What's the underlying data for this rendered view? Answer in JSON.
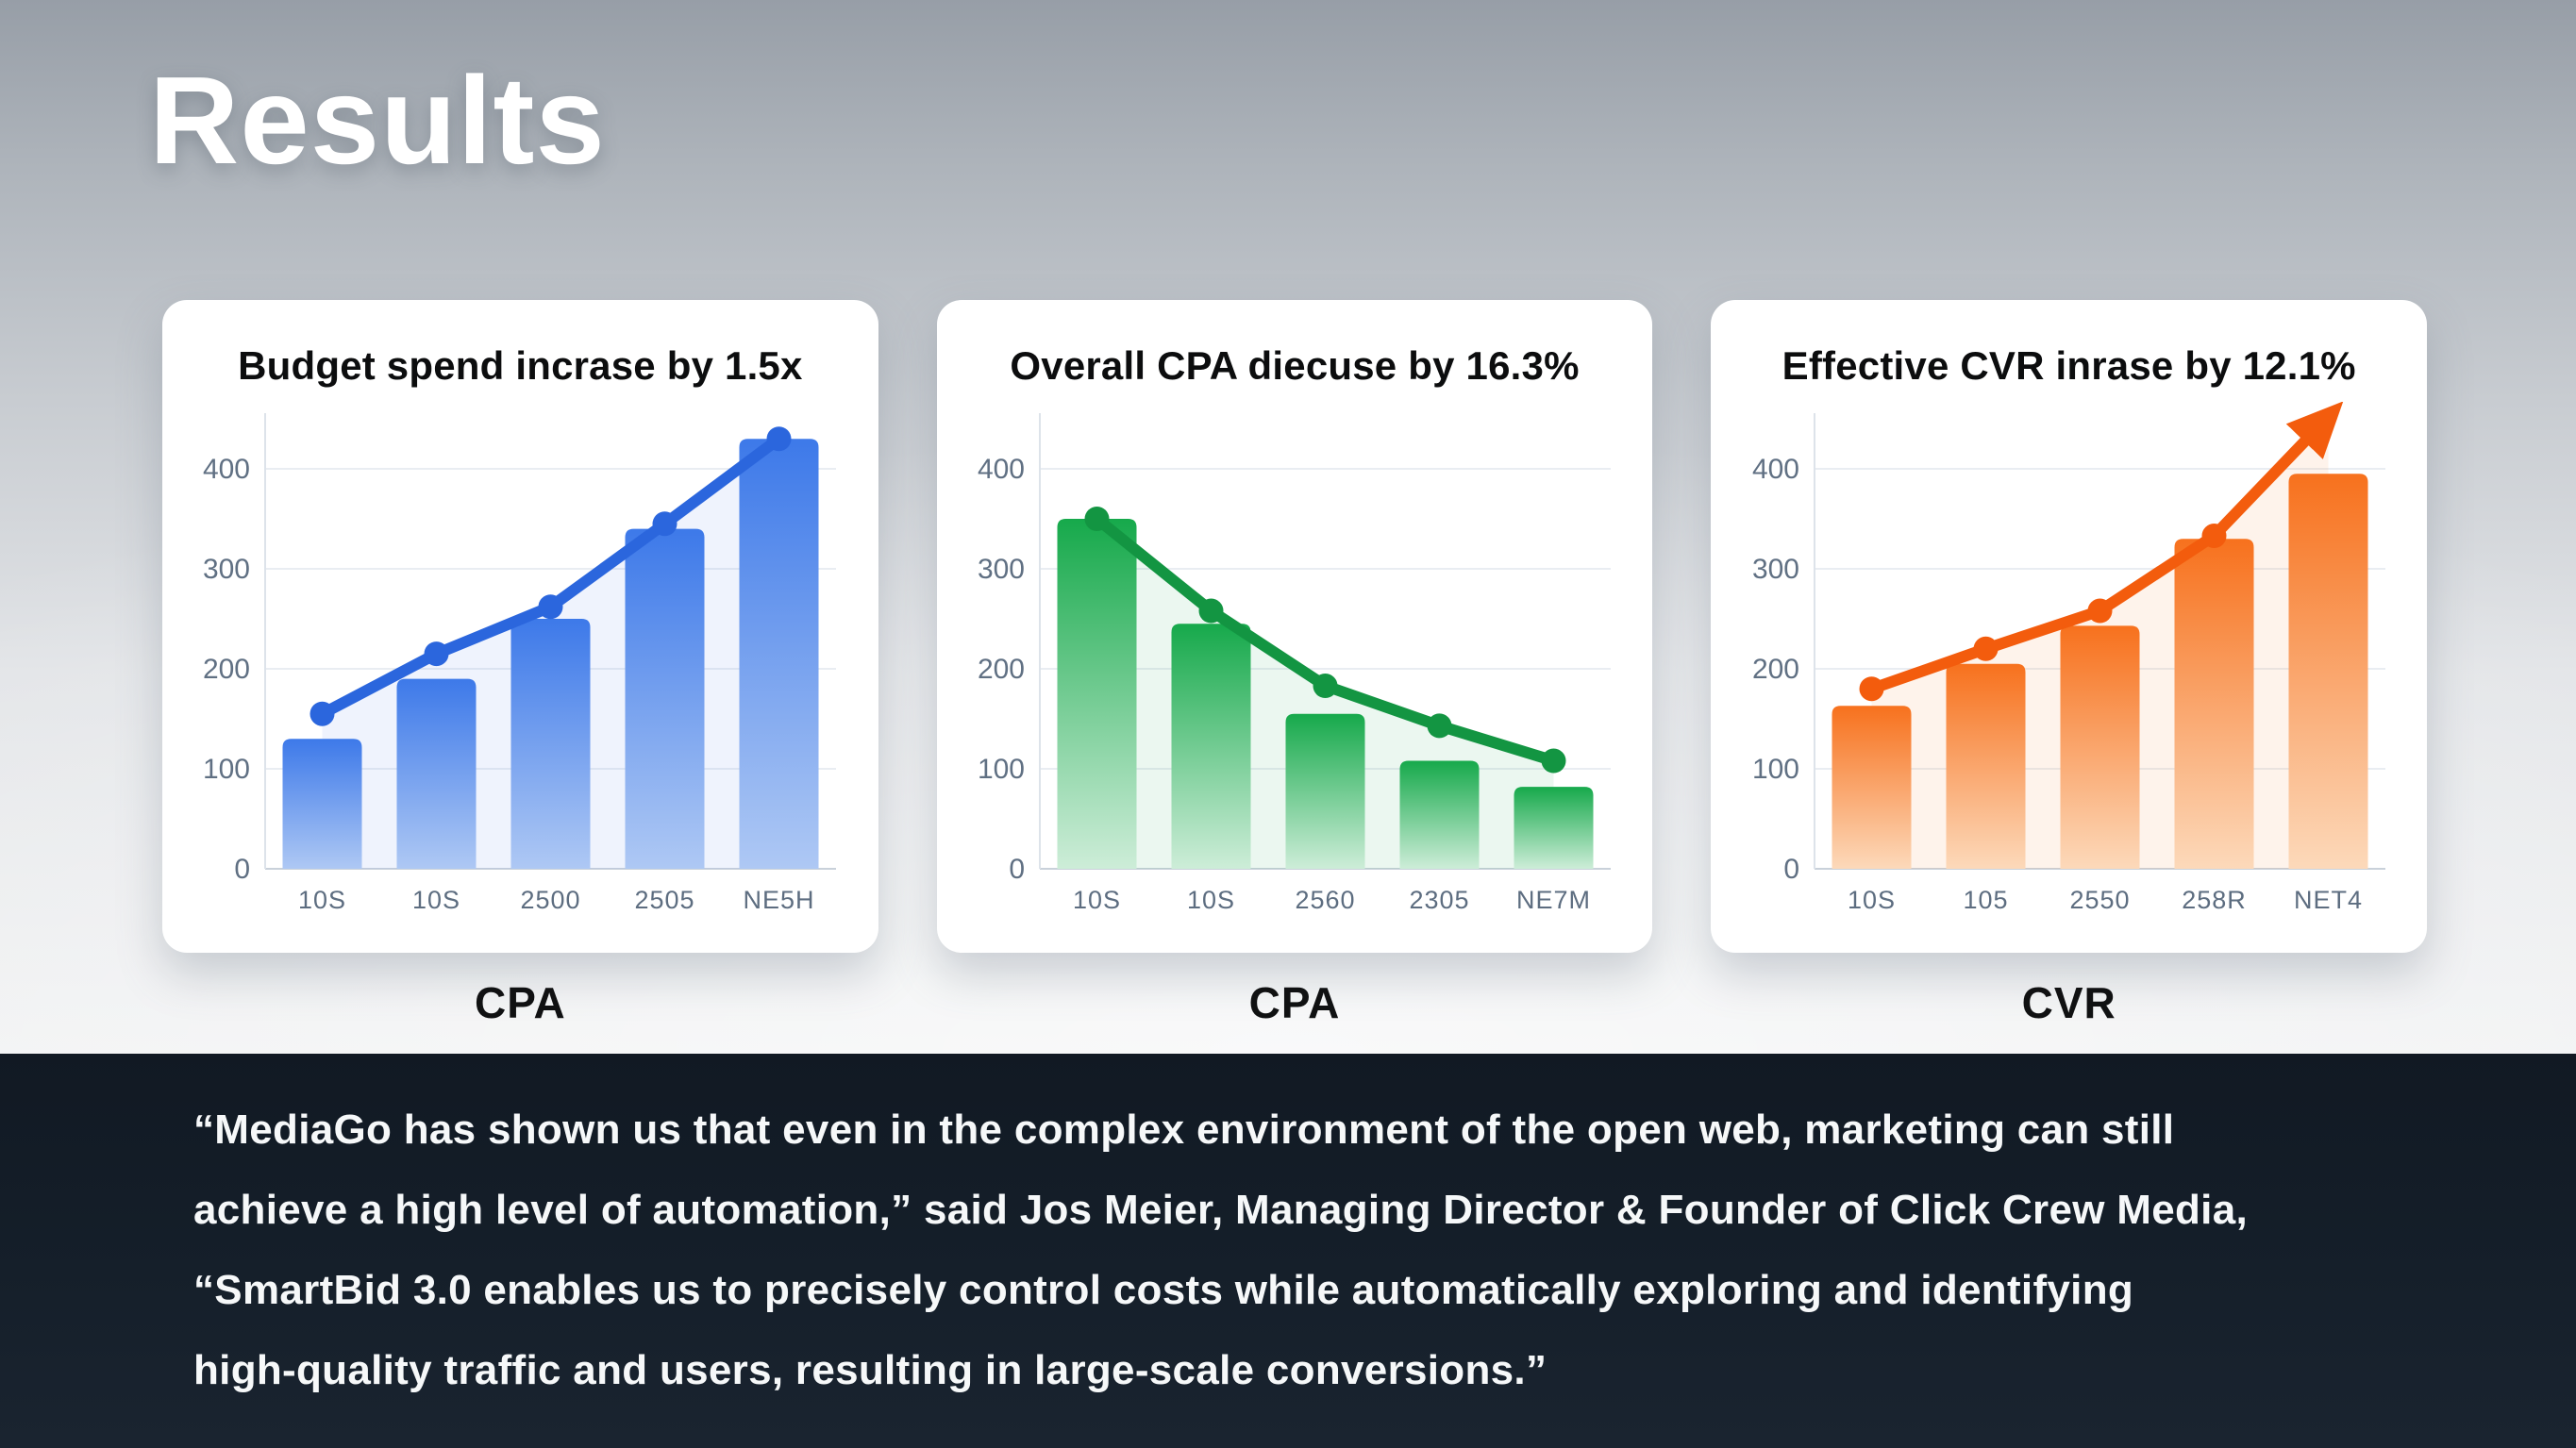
{
  "slide": {
    "title": "Results"
  },
  "cards": [
    {
      "title": "Budget spend incrase by 1.5x",
      "footer": "CPA"
    },
    {
      "title": "Overall CPA diecuse by 16.3%",
      "footer": "CPA"
    },
    {
      "title": "Effective CVR inrase by 12.1%",
      "footer": "CVR"
    }
  ],
  "chart_data": [
    {
      "type": "bar",
      "title": "Budget spend incrase by 1.5x",
      "categories": [
        "10S",
        "10S",
        "2500",
        "2505",
        "NE5H"
      ],
      "series": [
        {
          "name": "bars",
          "values": [
            130,
            190,
            250,
            340,
            430
          ]
        },
        {
          "name": "trend-line",
          "values": [
            155,
            215,
            262,
            345,
            430
          ]
        }
      ],
      "xlabel": "",
      "ylabel": "",
      "ylim": [
        0,
        450
      ],
      "yticks": [
        0,
        100,
        200,
        300,
        400
      ],
      "grid": true,
      "legend": "none",
      "arrow_end": false,
      "colors": {
        "bar_top": "#3d79e9",
        "bar_bottom": "#aec8f4",
        "line": "#2b66dd",
        "area": "rgba(120,160,235,0.12)"
      }
    },
    {
      "type": "bar",
      "title": "Overall CPA diecuse by 16.3%",
      "categories": [
        "10S",
        "10S",
        "2560",
        "2305",
        "NE7M"
      ],
      "series": [
        {
          "name": "bars",
          "values": [
            350,
            245,
            155,
            108,
            82
          ]
        },
        {
          "name": "trend-line",
          "values": [
            350,
            258,
            183,
            143,
            108
          ]
        }
      ],
      "xlabel": "",
      "ylabel": "",
      "ylim": [
        0,
        450
      ],
      "yticks": [
        0,
        100,
        200,
        300,
        400
      ],
      "grid": true,
      "legend": "none",
      "arrow_end": false,
      "colors": {
        "bar_top": "#16a94b",
        "bar_bottom": "#cdedd8",
        "line": "#139542",
        "area": "rgba(60,180,110,0.10)"
      }
    },
    {
      "type": "bar",
      "title": "Effective CVR inrase by 12.1%",
      "categories": [
        "10S",
        "105",
        "2550",
        "258R",
        "NET4"
      ],
      "series": [
        {
          "name": "bars",
          "values": [
            163,
            205,
            243,
            330,
            395
          ]
        },
        {
          "name": "trend-line",
          "values": [
            180,
            220,
            258,
            333,
            452
          ]
        }
      ],
      "xlabel": "",
      "ylabel": "",
      "ylim": [
        0,
        450
      ],
      "yticks": [
        0,
        100,
        200,
        300,
        400
      ],
      "grid": true,
      "legend": "none",
      "arrow_end": true,
      "colors": {
        "bar_top": "#f7711d",
        "bar_bottom": "#fcd9ba",
        "line": "#f35c0d",
        "area": "rgba(250,160,90,0.12)"
      }
    }
  ],
  "quote": {
    "lines": [
      "“MediaGo has shown us that even in the complex environment of the open web, marketing can still",
      "achieve a high level of automation,” said Jos Meier, Managing Director & Founder of Click Crew Media,",
      "“SmartBid 3.0 enables us to precisely control costs while automatically exploring and identifying",
      "high-quality traffic and users, resulting in large-scale conversions.”"
    ]
  }
}
